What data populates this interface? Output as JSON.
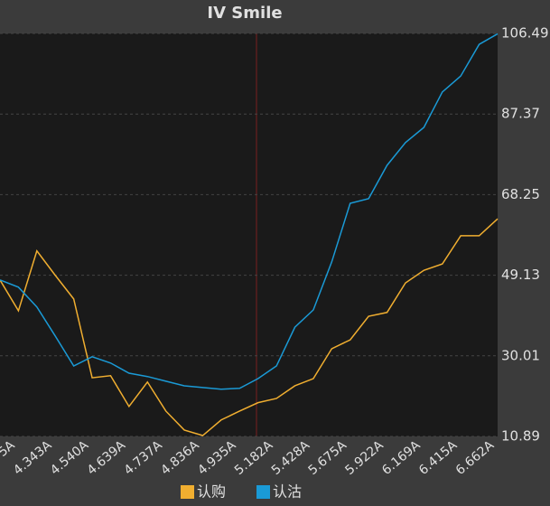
{
  "chart_data": {
    "type": "line",
    "title": "IV Smile",
    "categories": [
      null,
      "5A",
      null,
      "4.343A",
      null,
      "4.540A",
      null,
      "4.639A",
      null,
      "4.737A",
      null,
      "4.836A",
      null,
      "4.935A",
      null,
      "5.182A",
      null,
      "5.428A",
      null,
      "5.675A",
      null,
      "5.922A",
      null,
      "6.169A",
      null,
      "6.415A",
      null,
      "6.662A"
    ],
    "series": [
      {
        "name": "认购",
        "color": "#f0ae30",
        "values": [
          48.0,
          40.7,
          54.9,
          49.1,
          43.5,
          24.8,
          25.3,
          18.0,
          23.8,
          16.9,
          12.4,
          11.1,
          14.8,
          16.9,
          18.9,
          19.9,
          22.9,
          24.6,
          31.7,
          33.8,
          39.4,
          40.3,
          47.3,
          50.3,
          51.8,
          58.5,
          58.5,
          62.5
        ]
      },
      {
        "name": "认沽",
        "color": "#1a9ad6",
        "values": [
          48.0,
          46.3,
          41.6,
          34.7,
          27.6,
          29.8,
          28.3,
          25.9,
          25.1,
          24.0,
          22.9,
          22.5,
          22.1,
          22.3,
          24.6,
          27.6,
          36.8,
          40.9,
          52.3,
          66.2,
          67.3,
          75.2,
          80.6,
          84.2,
          92.6,
          96.4,
          103.9,
          106.4
        ]
      }
    ],
    "ylim": [
      10.89,
      106.49
    ],
    "yticks": [
      10.89,
      30.01,
      49.13,
      68.25,
      87.37,
      106.49
    ],
    "grid": true
  }
}
